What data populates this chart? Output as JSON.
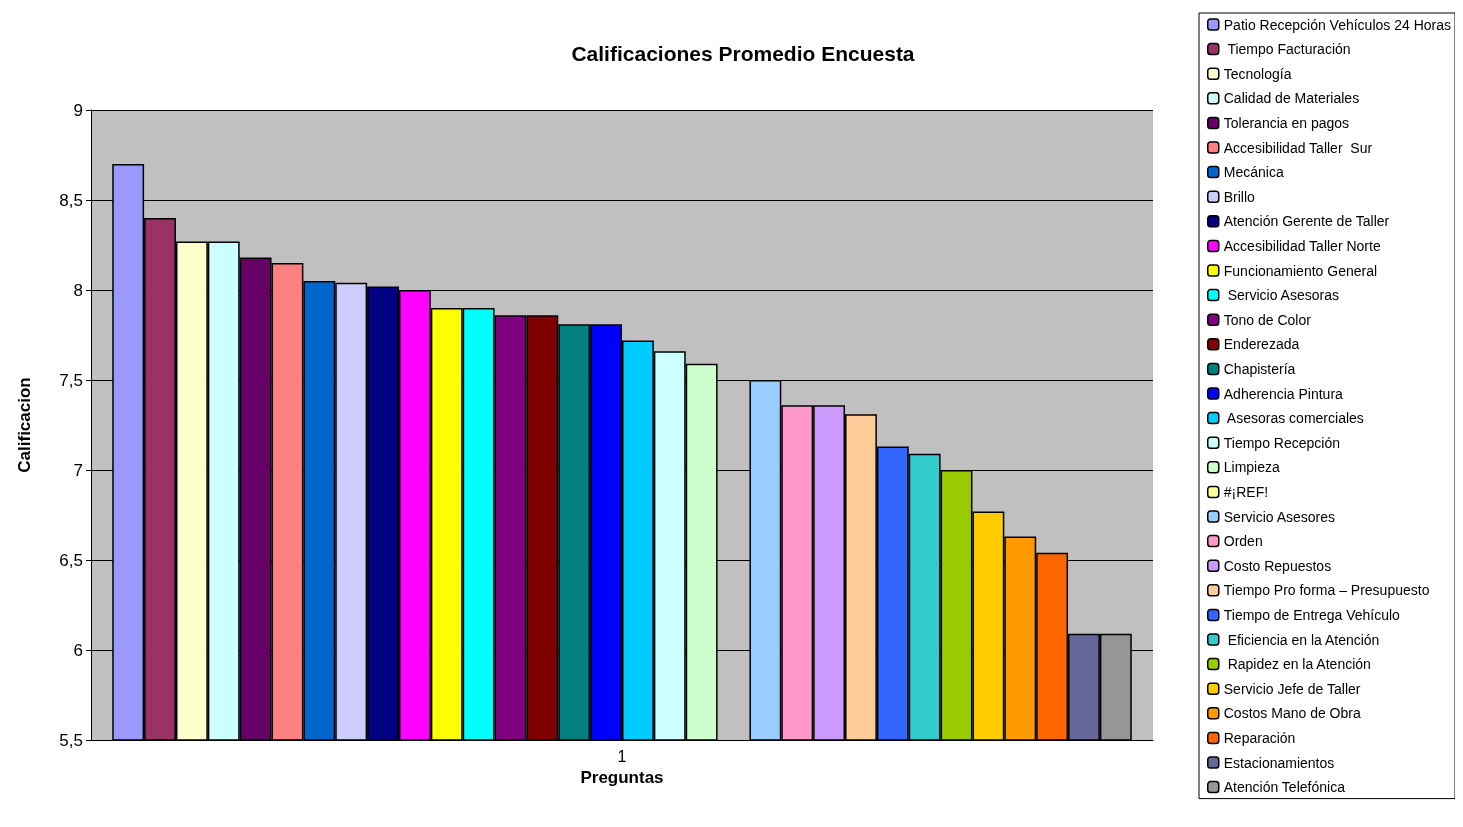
{
  "chart_data": {
    "type": "bar",
    "title": "Calificaciones Promedio Encuesta",
    "xlabel": "Preguntas",
    "ylabel": "Calificacion",
    "categories": [
      "1"
    ],
    "ylim": [
      5.5,
      9
    ],
    "yticks": [
      {
        "value": 5.5,
        "label": "5,5"
      },
      {
        "value": 6,
        "label": "6"
      },
      {
        "value": 6.5,
        "label": "6,5"
      },
      {
        "value": 7,
        "label": "7"
      },
      {
        "value": 7.5,
        "label": "7,5"
      },
      {
        "value": 8,
        "label": "8"
      },
      {
        "value": 8.5,
        "label": "8,5"
      },
      {
        "value": 9,
        "label": "9"
      }
    ],
    "grid": "y",
    "legend": "right",
    "series": [
      {
        "name": "Patio Recepción Vehículos 24 Horas",
        "color": "#9999ff",
        "values": [
          8.7
        ]
      },
      {
        "name": " Tiempo Facturación",
        "color": "#993366",
        "values": [
          8.4
        ]
      },
      {
        "name": "Tecnología",
        "color": "#ffffcc",
        "values": [
          8.27
        ]
      },
      {
        "name": "Calidad de Materiales",
        "color": "#ccffff",
        "values": [
          8.27
        ]
      },
      {
        "name": "Tolerancia en pagos",
        "color": "#660066",
        "values": [
          8.18
        ]
      },
      {
        "name": "Accesibilidad Taller  Sur",
        "color": "#ff8080",
        "values": [
          8.15
        ]
      },
      {
        "name": "Mecánica",
        "color": "#0066cc",
        "values": [
          8.05
        ]
      },
      {
        "name": "Brillo",
        "color": "#ccccff",
        "values": [
          8.04
        ]
      },
      {
        "name": "Atención Gerente de Taller",
        "color": "#000080",
        "values": [
          8.02
        ]
      },
      {
        "name": "Accesibilidad Taller Norte",
        "color": "#ff00ff",
        "values": [
          8.0
        ]
      },
      {
        "name": "Funcionamiento General",
        "color": "#ffff00",
        "values": [
          7.9
        ]
      },
      {
        "name": " Servicio Asesoras",
        "color": "#00ffff",
        "values": [
          7.9
        ]
      },
      {
        "name": "Tono de Color",
        "color": "#800080",
        "values": [
          7.86
        ]
      },
      {
        "name": "Enderezada",
        "color": "#800000",
        "values": [
          7.86
        ]
      },
      {
        "name": "Chapistería",
        "color": "#008080",
        "values": [
          7.81
        ]
      },
      {
        "name": "Adherencia Pintura",
        "color": "#0000ff",
        "values": [
          7.81
        ]
      },
      {
        "name": " Asesoras comerciales",
        "color": "#00ccff",
        "values": [
          7.72
        ]
      },
      {
        "name": "Tiempo Recepción",
        "color": "#ccffff",
        "values": [
          7.66
        ]
      },
      {
        "name": "Limpieza",
        "color": "#ccffcc",
        "values": [
          7.59
        ]
      },
      {
        "name": "#¡REF!",
        "color": "#ffff99",
        "values": [
          null
        ]
      },
      {
        "name": "Servicio Asesores",
        "color": "#99ccff",
        "values": [
          7.5
        ]
      },
      {
        "name": "Orden",
        "color": "#ff99cc",
        "values": [
          7.36
        ]
      },
      {
        "name": "Costo Repuestos",
        "color": "#cc99ff",
        "values": [
          7.36
        ]
      },
      {
        "name": "Tiempo Pro forma – Presupuesto",
        "color": "#ffcc99",
        "values": [
          7.31
        ]
      },
      {
        "name": "Tiempo de Entrega Vehículo",
        "color": "#3366ff",
        "values": [
          7.13
        ]
      },
      {
        "name": " Eficiencia en la Atención",
        "color": "#33cccc",
        "values": [
          7.09
        ]
      },
      {
        "name": " Rapidez en la Atención",
        "color": "#99cc00",
        "values": [
          7.0
        ]
      },
      {
        "name": "Servicio Jefe de Taller",
        "color": "#ffcc00",
        "values": [
          6.77
        ]
      },
      {
        "name": "Costos Mano de Obra",
        "color": "#ff9900",
        "values": [
          6.63
        ]
      },
      {
        "name": "Reparación",
        "color": "#ff6600",
        "values": [
          6.54
        ]
      },
      {
        "name": "Estacionamientos",
        "color": "#666699",
        "values": [
          6.09
        ]
      },
      {
        "name": "Atención Telefónica",
        "color": "#969696",
        "values": [
          6.09
        ]
      }
    ]
  }
}
